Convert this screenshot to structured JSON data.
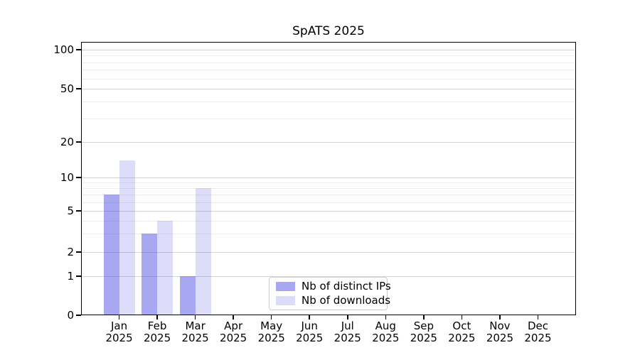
{
  "title": "SpATS 2025",
  "chart_data": {
    "type": "bar",
    "title": "SpATS 2025",
    "categories": [
      "Jan",
      "Feb",
      "Mar",
      "Apr",
      "May",
      "Jun",
      "Jul",
      "Aug",
      "Sep",
      "Oct",
      "Nov",
      "Dec"
    ],
    "category_year": "2025",
    "series": [
      {
        "name": "Nb of distinct IPs",
        "values": [
          7,
          3,
          1,
          0,
          0,
          0,
          0,
          0,
          0,
          0,
          0,
          0
        ],
        "bar_color": "rgba(68, 68, 228, 0.47)",
        "legend_color": "#a7a7f2"
      },
      {
        "name": "Nb of downloads",
        "values": [
          14,
          4,
          8,
          0,
          0,
          0,
          0,
          0,
          0,
          0,
          0,
          0
        ],
        "bar_color": "rgba(68, 68, 228, 0.185)",
        "legend_color": "#dcdcfa"
      }
    ],
    "yscale": "log-with-zero",
    "y_ticks": [
      0,
      1,
      2,
      5,
      10,
      20,
      50,
      100
    ],
    "y_minor_ticks": [
      3,
      4,
      6,
      7,
      8,
      9,
      30,
      40,
      60,
      70,
      80,
      90
    ],
    "ylim": [
      0,
      115
    ],
    "grid": true,
    "legend_position": "lower center"
  },
  "colors": {
    "background": "#ffffff",
    "text": "#000000",
    "spine": "#000000",
    "grid_major": "#d4d4d4",
    "grid_minor": "#ececec",
    "legend_border": "#cccccc"
  }
}
